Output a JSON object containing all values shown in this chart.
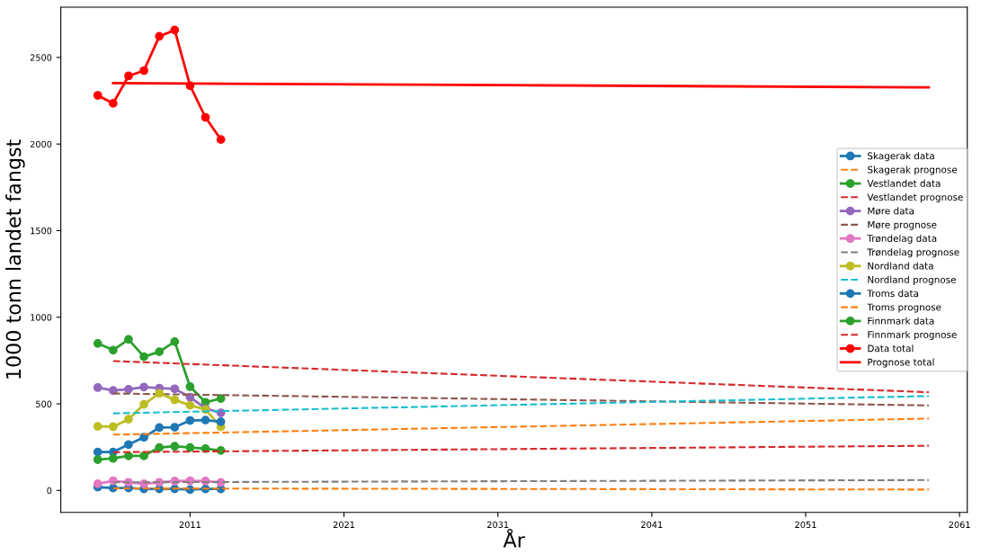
{
  "chart_data": {
    "type": "line",
    "xlabel": "År",
    "ylabel": "1000 tonn landet fangst",
    "xlim": [
      2002.6,
      2061.5
    ],
    "ylim": [
      -127,
      2790
    ],
    "xticks": [
      2011,
      2021,
      2031,
      2041,
      2051,
      2061
    ],
    "yticks": [
      0,
      500,
      1000,
      1500,
      2000,
      2500
    ],
    "grid": false,
    "legend": "right",
    "series": [
      {
        "name": "Skagerak data",
        "color": "#1f77b4",
        "marker": "circle",
        "line_style": "solid",
        "x": [
          2005,
          2006,
          2007,
          2008,
          2009,
          2010,
          2011,
          2012,
          2013
        ],
        "values": [
          19,
          14,
          14,
          9,
          9,
          9,
          5,
          9,
          9
        ]
      },
      {
        "name": "Skagerak prognose",
        "color": "#ff7f0e",
        "marker": "none",
        "line_style": "dashed",
        "x": [
          2006,
          2059
        ],
        "values": [
          12,
          5
        ]
      },
      {
        "name": "Vestlandet data",
        "color": "#2ca02c",
        "marker": "circle",
        "line_style": "solid",
        "x": [
          2005,
          2006,
          2007,
          2008,
          2009,
          2010,
          2011,
          2012,
          2013
        ],
        "values": [
          849,
          810,
          872,
          772,
          801,
          859,
          599,
          509,
          531
        ]
      },
      {
        "name": "Vestlandet prognose",
        "color": "#d62728",
        "marker": "none",
        "line_style": "dashed",
        "x": [
          2006,
          2059
        ],
        "values": [
          747,
          567
        ]
      },
      {
        "name": "Møre data",
        "color": "#9467bd",
        "marker": "circle",
        "line_style": "solid",
        "x": [
          2005,
          2006,
          2007,
          2008,
          2009,
          2010,
          2011,
          2012,
          2013
        ],
        "values": [
          594,
          577,
          584,
          597,
          591,
          587,
          538,
          473,
          448
        ]
      },
      {
        "name": "Møre prognose",
        "color": "#8c564b",
        "marker": "none",
        "line_style": "dashed",
        "x": [
          2006,
          2059
        ],
        "values": [
          560,
          491
        ]
      },
      {
        "name": "Trøndelag data",
        "color": "#e377c2",
        "marker": "circle",
        "line_style": "solid",
        "x": [
          2005,
          2006,
          2007,
          2008,
          2009,
          2010,
          2011,
          2012,
          2013
        ],
        "values": [
          39,
          56,
          47,
          39,
          47,
          54,
          56,
          54,
          46
        ]
      },
      {
        "name": "Trøndelag prognose",
        "color": "#7f7f7f",
        "marker": "none",
        "line_style": "dashed",
        "x": [
          2006,
          2059
        ],
        "values": [
          47,
          60
        ]
      },
      {
        "name": "Nordland data",
        "color": "#bcbd22",
        "marker": "circle",
        "line_style": "solid",
        "x": [
          2005,
          2006,
          2007,
          2008,
          2009,
          2010,
          2011,
          2012,
          2013
        ],
        "values": [
          370,
          368,
          411,
          497,
          561,
          523,
          492,
          467,
          367
        ]
      },
      {
        "name": "Nordland prognose",
        "color": "#17becf",
        "marker": "none",
        "line_style": "dashed",
        "x": [
          2006,
          2059
        ],
        "values": [
          445,
          545
        ]
      },
      {
        "name": "Troms data",
        "color": "#1f77b4",
        "marker": "circle",
        "line_style": "solid",
        "x": [
          2005,
          2006,
          2007,
          2008,
          2009,
          2010,
          2011,
          2012,
          2013
        ],
        "values": [
          222,
          222,
          265,
          307,
          363,
          365,
          404,
          406,
          397
        ]
      },
      {
        "name": "Troms prognose",
        "color": "#ff7f0e",
        "marker": "none",
        "line_style": "dashed",
        "x": [
          2006,
          2059
        ],
        "values": [
          322,
          415
        ]
      },
      {
        "name": "Finnmark data",
        "color": "#2ca02c",
        "marker": "circle",
        "line_style": "solid",
        "x": [
          2005,
          2006,
          2007,
          2008,
          2009,
          2010,
          2011,
          2012,
          2013
        ],
        "values": [
          178,
          185,
          200,
          200,
          248,
          255,
          248,
          241,
          231
        ]
      },
      {
        "name": "Finnmark prognose",
        "color": "#d62728",
        "marker": "none",
        "line_style": "dashed",
        "x": [
          2006,
          2059
        ],
        "values": [
          221,
          258
        ]
      },
      {
        "name": "Data total",
        "color": "#ff0000",
        "marker": "circle",
        "line_style": "solid",
        "x": [
          2005,
          2006,
          2007,
          2008,
          2009,
          2010,
          2011,
          2012,
          2013
        ],
        "values": [
          2281,
          2235,
          2393,
          2424,
          2622,
          2658,
          2337,
          2154,
          2026
        ]
      },
      {
        "name": "Prognose total",
        "color": "#ff0000",
        "marker": "none",
        "line_style": "solid",
        "x": [
          2006,
          2059
        ],
        "values": [
          2352,
          2327
        ]
      }
    ]
  }
}
